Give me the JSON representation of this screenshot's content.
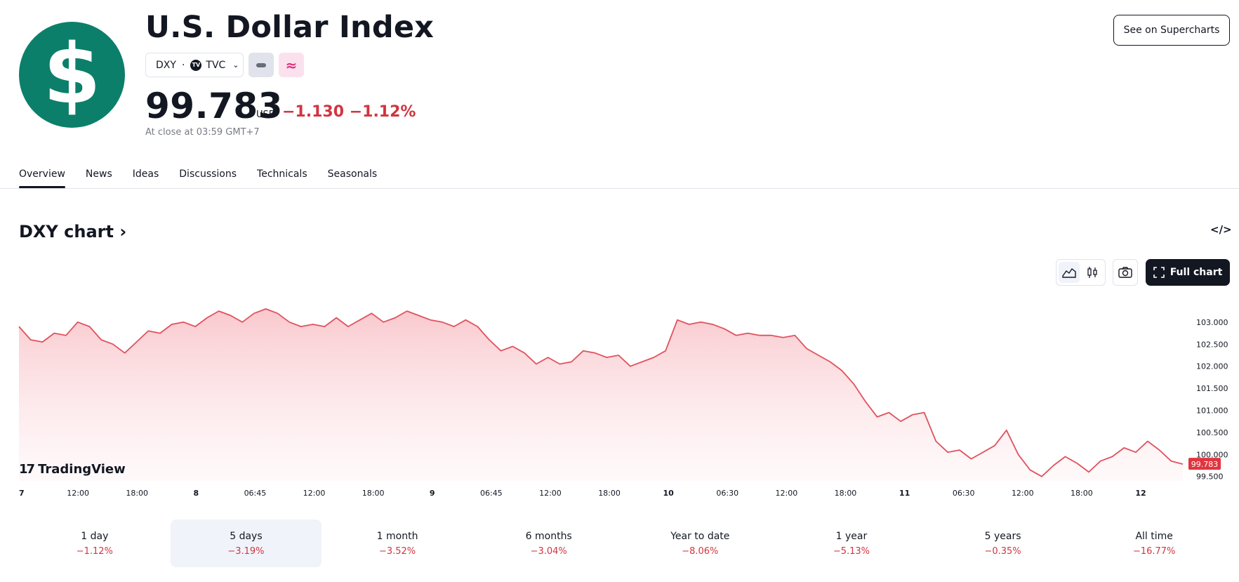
{
  "header": {
    "logo_glyph": "$",
    "title": "U.S. Dollar Index",
    "symbol": "DXY",
    "exchange_badge": "TV",
    "exchange": "TVC",
    "tag_glyph": "≈",
    "price": "99.783",
    "currency": "USD",
    "change_abs": "−1.130",
    "change_pct": "−1.12%",
    "close_note": "At close at 03:59 GMT+7",
    "supercharts_label": "See on Supercharts"
  },
  "tabs": [
    "Overview",
    "News",
    "Ideas",
    "Discussions",
    "Technicals",
    "Seasonals"
  ],
  "chart_section": {
    "title": "DXY chart",
    "embed_label": "</>",
    "full_chart_label": "Full chart",
    "brand": "TradingView",
    "brand_mark": "17"
  },
  "periods": [
    {
      "label": "1 day",
      "change": "−1.12%"
    },
    {
      "label": "5 days",
      "change": "−3.19%"
    },
    {
      "label": "1 month",
      "change": "−3.52%"
    },
    {
      "label": "6 months",
      "change": "−3.04%"
    },
    {
      "label": "Year to date",
      "change": "−8.06%"
    },
    {
      "label": "1 year",
      "change": "−5.13%"
    },
    {
      "label": "5 years",
      "change": "−0.35%"
    },
    {
      "label": "All time",
      "change": "−16.77%"
    }
  ],
  "colors": {
    "line": "#e0525e",
    "negative": "#d1353f",
    "logo": "#0b7f6a",
    "last_price_tag": "#e0353f"
  },
  "chart_data": {
    "type": "area",
    "title": "",
    "xlabel": "",
    "ylabel": "",
    "ylim": [
      99.4,
      103.3
    ],
    "y_ticks": [
      "103.000",
      "102.500",
      "102.000",
      "101.500",
      "101.000",
      "100.500",
      "100.000",
      "99.500"
    ],
    "x_ticks": [
      "7",
      "12:00",
      "18:00",
      "8",
      "06:45",
      "12:00",
      "18:00",
      "9",
      "06:45",
      "12:00",
      "18:00",
      "10",
      "06:30",
      "12:00",
      "18:00",
      "11",
      "06:30",
      "12:00",
      "18:00",
      "12"
    ],
    "last_value_label": "99.783",
    "series": [
      {
        "values": [
          102.9,
          102.6,
          102.55,
          102.75,
          102.7,
          103.0,
          102.9,
          102.6,
          102.5,
          102.3,
          102.55,
          102.8,
          102.75,
          102.95,
          103.0,
          102.9,
          103.1,
          103.25,
          103.15,
          103.0,
          103.2,
          103.3,
          103.2,
          103.0,
          102.9,
          102.95,
          102.9,
          103.1,
          102.9,
          103.05,
          103.2,
          103.0,
          103.1,
          103.25,
          103.15,
          103.05,
          103.0,
          102.9,
          103.05,
          102.9,
          102.6,
          102.35,
          102.45,
          102.3,
          102.05,
          102.2,
          102.05,
          102.1,
          102.35,
          102.3,
          102.2,
          102.25,
          102.0,
          102.1,
          102.2,
          102.35,
          103.05,
          102.95,
          103.0,
          102.95,
          102.85,
          102.7,
          102.75,
          102.7,
          102.7,
          102.65,
          102.7,
          102.4,
          102.25,
          102.1,
          101.9,
          101.6,
          101.2,
          100.85,
          100.95,
          100.75,
          100.9,
          100.95,
          100.3,
          100.05,
          100.1,
          99.9,
          100.05,
          100.2,
          100.55,
          100.0,
          99.65,
          99.5,
          99.75,
          99.95,
          99.8,
          99.6,
          99.85,
          99.95,
          100.15,
          100.05,
          100.3,
          100.1,
          99.85,
          99.78
        ]
      }
    ]
  }
}
